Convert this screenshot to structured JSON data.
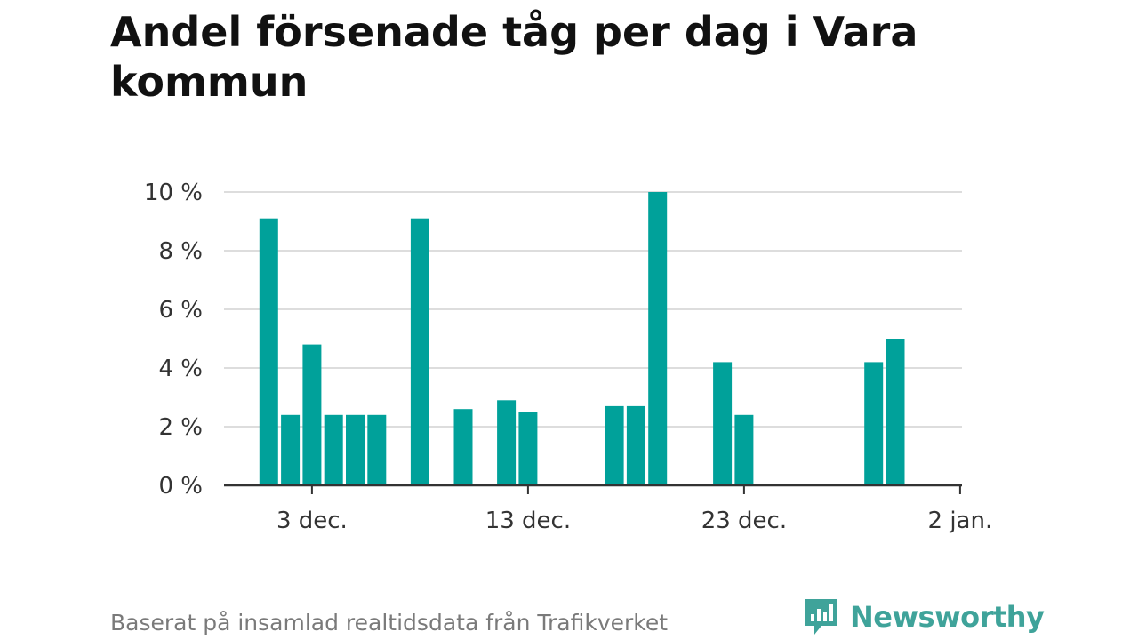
{
  "chart_data": {
    "type": "bar",
    "title": "Andel försenade tåg per dag i Vara kommun",
    "xlabel": "",
    "ylabel": "",
    "x_start": "30 nov.",
    "x": [
      "30 nov.",
      "1 dec.",
      "2 dec.",
      "3 dec.",
      "4 dec.",
      "5 dec.",
      "6 dec.",
      "7 dec.",
      "8 dec.",
      "9 dec.",
      "10 dec.",
      "11 dec.",
      "12 dec.",
      "13 dec.",
      "14 dec.",
      "15 dec.",
      "16 dec.",
      "17 dec.",
      "18 dec.",
      "19 dec.",
      "20 dec.",
      "21 dec.",
      "22 dec.",
      "23 dec.",
      "24 dec.",
      "25 dec.",
      "26 dec.",
      "27 dec.",
      "28 dec.",
      "29 dec.",
      "30 dec.",
      "31 dec.",
      "1 jan.",
      "2 jan."
    ],
    "values": [
      null,
      9.1,
      2.4,
      4.8,
      2.4,
      2.4,
      2.4,
      null,
      9.1,
      null,
      2.6,
      null,
      2.9,
      2.5,
      null,
      null,
      null,
      2.7,
      2.7,
      10.0,
      null,
      null,
      4.2,
      2.4,
      null,
      null,
      null,
      null,
      null,
      4.2,
      5.0,
      null,
      null,
      null
    ],
    "ylim": [
      0,
      10
    ],
    "yticks": [
      "0 %",
      "2 %",
      "4 %",
      "6 %",
      "8 %",
      "10 %"
    ],
    "ytick_values": [
      0,
      2,
      4,
      6,
      8,
      10
    ],
    "xticks": [
      "3 dec.",
      "13 dec.",
      "23 dec.",
      "2 jan."
    ],
    "xtick_indices": [
      3,
      13,
      23,
      33
    ],
    "grid": true,
    "bar_color": "#00a19a"
  },
  "footer": {
    "note": "Baserat på insamlad realtidsdata från Trafikverket",
    "brand": "Newsworthy",
    "brand_color": "#3fa39a"
  }
}
